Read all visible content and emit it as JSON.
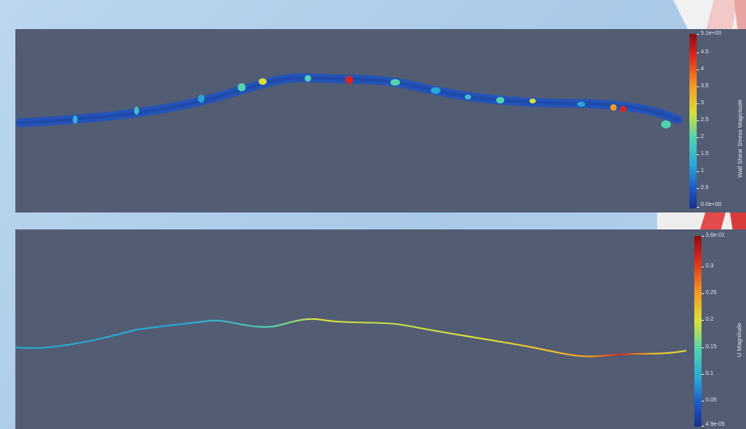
{
  "views": [
    {
      "scalar_name": "Wall Shear Stress Magnitude",
      "colorbar": {
        "max_label": "5.1e+00",
        "min_label": "0.0e+00",
        "ticks": [
          "4.5",
          "4",
          "3.5",
          "3",
          "2.5",
          "2",
          "1.5",
          "1",
          "0.5"
        ]
      }
    },
    {
      "scalar_name": "U Magnitude",
      "colorbar": {
        "max_label": "3.6e-01",
        "min_label": "4.9e-05",
        "ticks": [
          "0.3",
          "0.25",
          "0.2",
          "0.15",
          "0.1",
          "0.05"
        ]
      }
    }
  ],
  "colors": {
    "viewport_bg": "#525c73",
    "vessel_base": "#1f4fb0",
    "colormap": [
      "#1a2f8c",
      "#1e59c8",
      "#2aa7d6",
      "#4fd3b0",
      "#d9e03a",
      "#f59a23",
      "#d9261c",
      "#8a0f12"
    ]
  }
}
